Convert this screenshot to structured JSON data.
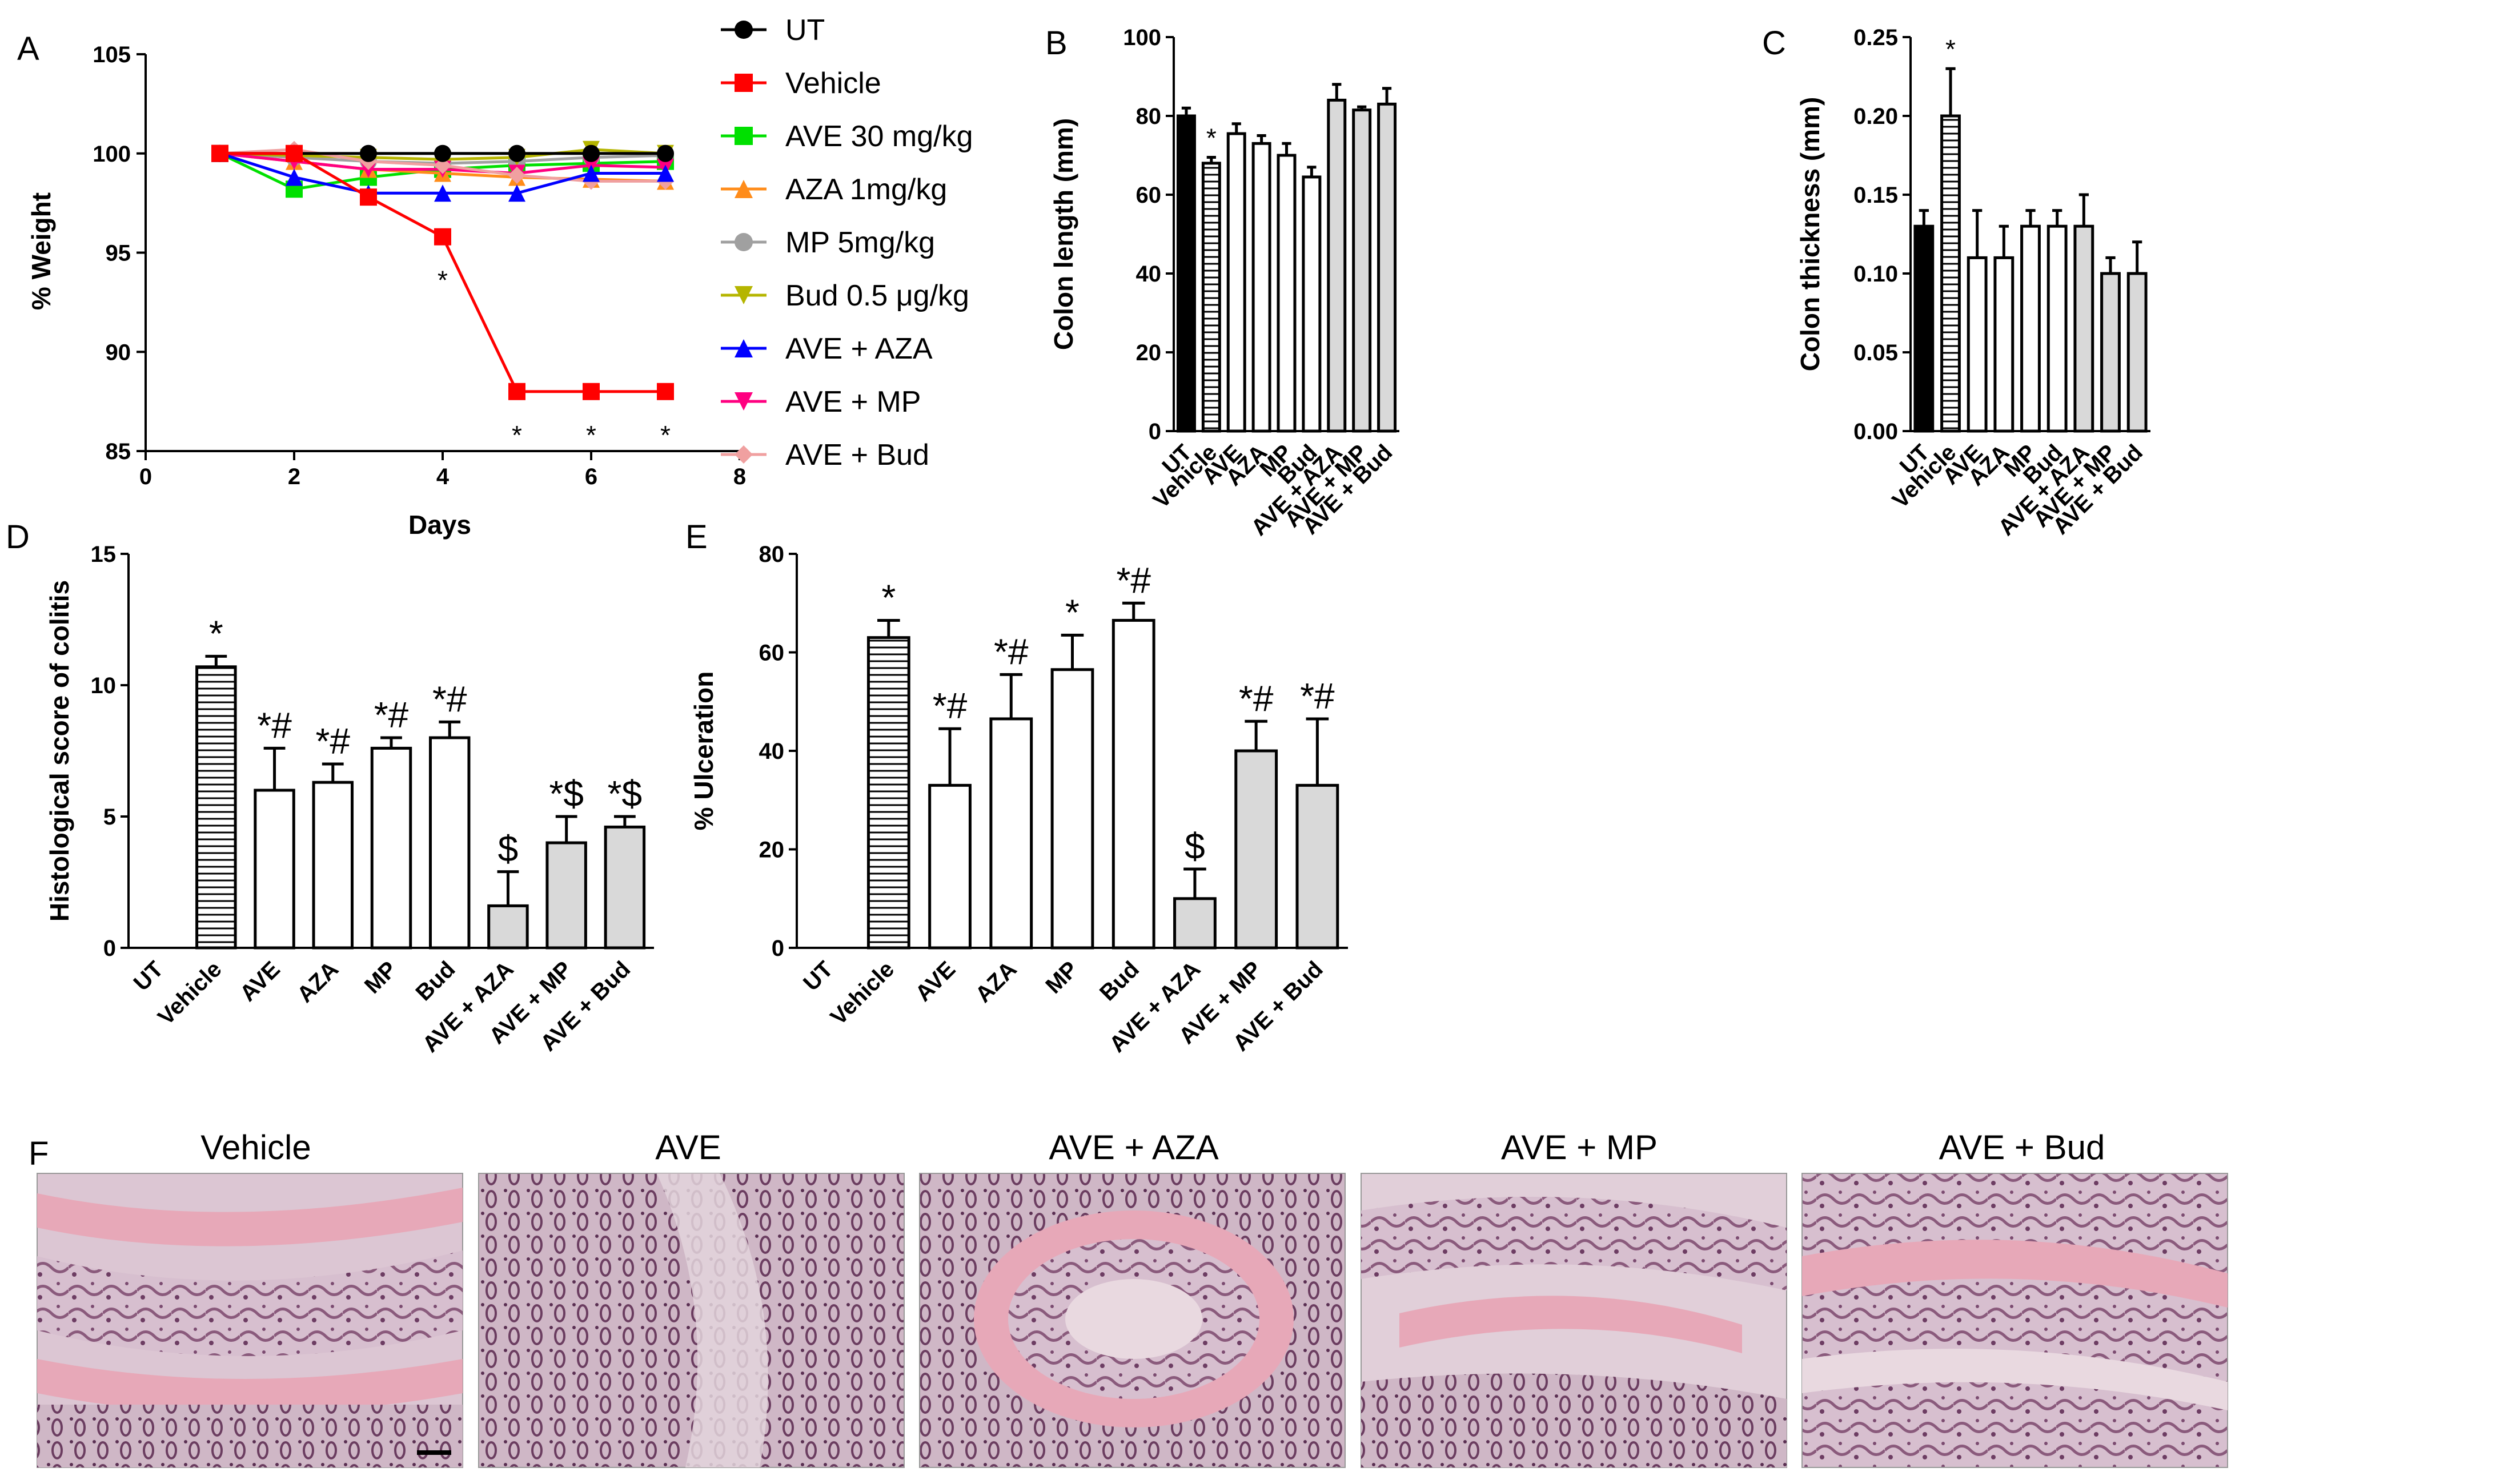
{
  "figure": {
    "panels": [
      "A",
      "B",
      "C",
      "D",
      "E",
      "F"
    ],
    "colors": {
      "axis": "#000000",
      "bar_black": "#000000",
      "bar_white": "#ffffff",
      "bar_gray": "#d9d9d9",
      "hatch": "#000000"
    }
  },
  "chart_data": [
    {
      "panel": "A",
      "type": "line",
      "xlabel": "Days",
      "ylabel": "% Weight",
      "xlim": [
        0,
        8
      ],
      "ylim": [
        85,
        105
      ],
      "xticks": [
        "0",
        "2",
        "4",
        "6",
        "8"
      ],
      "yticks": [
        "85",
        "90",
        "95",
        "100",
        "105"
      ],
      "x": [
        1,
        2,
        3,
        4,
        5,
        6,
        7
      ],
      "series": [
        {
          "name": "UT",
          "color": "#000000",
          "marker": "circle",
          "values": [
            100,
            100,
            100,
            100,
            100,
            100,
            100
          ]
        },
        {
          "name": "Vehicle",
          "color": "#ff0000",
          "marker": "square",
          "values": [
            100,
            100,
            97.8,
            95.8,
            88,
            88,
            88
          ]
        },
        {
          "name": "AVE 30 mg/kg",
          "color": "#00e000",
          "marker": "square",
          "values": [
            100,
            98.2,
            98.8,
            99.2,
            99.4,
            99.5,
            99.6
          ]
        },
        {
          "name": "AZA 1mg/kg",
          "color": "#ff8c1a",
          "marker": "triangle-up",
          "values": [
            100,
            99.6,
            99.2,
            99,
            98.8,
            98.7,
            98.6
          ]
        },
        {
          "name": "MP 5mg/kg",
          "color": "#a0a0a0",
          "marker": "circle",
          "values": [
            100,
            99.8,
            99.6,
            99.5,
            99.6,
            99.8,
            99.9
          ]
        },
        {
          "name": "Bud 0.5 μg/kg",
          "color": "#b5b500",
          "marker": "triangle-down",
          "values": [
            100,
            99.9,
            99.8,
            99.7,
            99.8,
            100.2,
            100
          ]
        },
        {
          "name": "AVE + AZA",
          "color": "#0000ff",
          "marker": "triangle-up",
          "values": [
            100,
            98.8,
            98,
            98,
            98,
            99,
            99
          ]
        },
        {
          "name": "AVE + MP",
          "color": "#ff0080",
          "marker": "triangle-down",
          "values": [
            100,
            99.6,
            99.2,
            99.2,
            99,
            99.4,
            99.3
          ]
        },
        {
          "name": "AVE + Bud",
          "color": "#f0a0a0",
          "marker": "diamond",
          "values": [
            100,
            100.2,
            99.6,
            99.4,
            98.9,
            98.6,
            98.6
          ]
        }
      ],
      "annotations": [
        {
          "x": 4,
          "y": 95.8,
          "text": "*"
        },
        {
          "x": 5,
          "y": 88,
          "text": "*"
        },
        {
          "x": 6,
          "y": 88,
          "text": "*"
        },
        {
          "x": 7,
          "y": 88,
          "text": "*"
        }
      ]
    },
    {
      "panel": "B",
      "type": "bar",
      "ylabel": "Colon length (mm)",
      "ylim": [
        0,
        100
      ],
      "yticks": [
        "0",
        "20",
        "40",
        "60",
        "80",
        "100"
      ],
      "categories": [
        "UT",
        "Vehicle",
        "AVE",
        "AZA",
        "MP",
        "Bud",
        "AVE + AZA",
        "AVE + MP",
        "AVE + Bud"
      ],
      "values": [
        80,
        68,
        75.5,
        73,
        70,
        64.5,
        84,
        81.5,
        83
      ],
      "errors": [
        2,
        1.5,
        2.5,
        2,
        3,
        2.5,
        4,
        0.8,
        4
      ],
      "styles": [
        "black",
        "hatch",
        "white",
        "white",
        "white",
        "white",
        "gray",
        "gray",
        "gray"
      ],
      "annotations": [
        "",
        "*",
        "",
        "",
        "",
        "",
        "",
        "",
        ""
      ]
    },
    {
      "panel": "C",
      "type": "bar",
      "ylabel": "Colon thickness (mm)",
      "ylim": [
        0,
        0.25
      ],
      "yticks": [
        "0.00",
        "0.05",
        "0.10",
        "0.15",
        "0.20",
        "0.25"
      ],
      "categories": [
        "UT",
        "Vehicle",
        "AVE",
        "AZA",
        "MP",
        "Bud",
        "AVE + AZA",
        "AVE + MP",
        "AVE + Bud"
      ],
      "values": [
        0.13,
        0.2,
        0.11,
        0.11,
        0.13,
        0.13,
        0.13,
        0.1,
        0.1
      ],
      "errors": [
        0.01,
        0.03,
        0.03,
        0.02,
        0.01,
        0.01,
        0.02,
        0.01,
        0.02
      ],
      "styles": [
        "black",
        "hatch",
        "white",
        "white",
        "white",
        "white",
        "gray",
        "gray",
        "gray"
      ],
      "annotations": [
        "",
        "*",
        "",
        "",
        "",
        "",
        "",
        "",
        ""
      ]
    },
    {
      "panel": "D",
      "type": "bar",
      "ylabel": "Histological score of colitis",
      "ylim": [
        0,
        15
      ],
      "yticks": [
        "0",
        "5",
        "10",
        "15"
      ],
      "categories": [
        "UT",
        "Vehicle",
        "AVE",
        "AZA",
        "MP",
        "Bud",
        "AVE + AZA",
        "AVE + MP",
        "AVE + Bud"
      ],
      "values": [
        0,
        10.7,
        6,
        6.3,
        7.6,
        8,
        1.6,
        4,
        4.6
      ],
      "errors": [
        0,
        0.4,
        1.6,
        0.7,
        0.4,
        0.6,
        1.3,
        1,
        0.4
      ],
      "styles": [
        "black",
        "hatch",
        "white",
        "white",
        "white",
        "white",
        "gray",
        "gray",
        "gray"
      ],
      "annotations": [
        "",
        "*",
        "*#",
        "*#",
        "*#",
        "*#",
        "$",
        "*$",
        "*$"
      ]
    },
    {
      "panel": "E",
      "type": "bar",
      "ylabel": "% Ulceration",
      "ylim": [
        0,
        80
      ],
      "yticks": [
        "0",
        "20",
        "40",
        "60",
        "80"
      ],
      "categories": [
        "UT",
        "Vehicle",
        "AVE",
        "AZA",
        "MP",
        "Bud",
        "AVE + AZA",
        "AVE + MP",
        "AVE + Bud"
      ],
      "values": [
        0,
        63,
        33,
        46.5,
        56.5,
        66.5,
        10,
        40,
        33
      ],
      "errors": [
        0,
        3.5,
        11.5,
        9,
        7,
        3.5,
        6,
        6,
        13.5
      ],
      "styles": [
        "black",
        "hatch",
        "white",
        "white",
        "white",
        "white",
        "gray",
        "gray",
        "gray"
      ],
      "annotations": [
        "",
        "*",
        "*#",
        "*#",
        "*",
        "*#",
        "$",
        "*#",
        "*#"
      ]
    }
  ],
  "panel_f": {
    "label": "F",
    "titles": [
      "Vehicle",
      "AVE",
      "AVE + AZA",
      "AVE + MP",
      "AVE + Bud"
    ]
  }
}
